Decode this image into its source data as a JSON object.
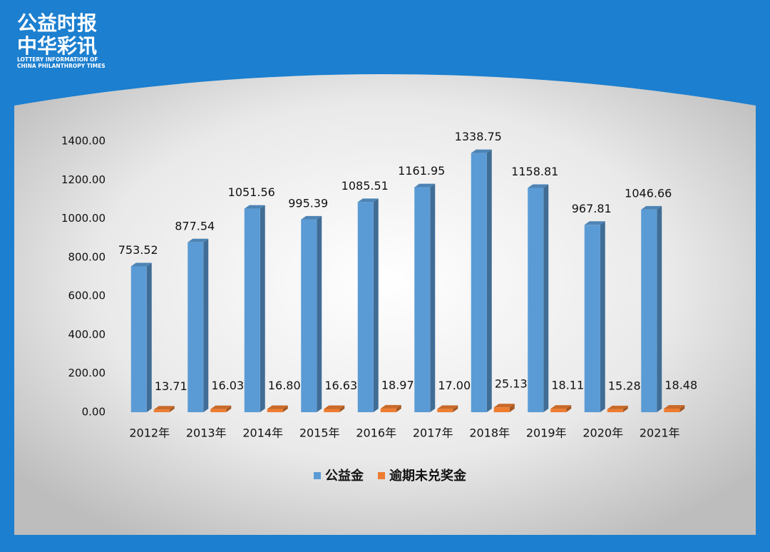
{
  "logo": {
    "title_line1": "公益时报",
    "title_line2": "中华彩讯",
    "subtitle_line1": "LOTTERY INFORMATION OF",
    "subtitle_line2": "CHINA PHILANTHROPY TIMES"
  },
  "chart_data": {
    "type": "bar3d",
    "categories": [
      "2012年",
      "2013年",
      "2014年",
      "2015年",
      "2016年",
      "2017年",
      "2018年",
      "2019年",
      "2020年",
      "2021年"
    ],
    "series": [
      {
        "name": "公益金",
        "color": "#5b9bd5",
        "values": [
          753.52,
          877.54,
          1051.56,
          995.39,
          1085.51,
          1161.95,
          1338.75,
          1158.81,
          967.81,
          1046.66
        ],
        "value_labels": [
          "753.52",
          "877.54",
          "1051.56",
          "995.39",
          "1085.51",
          "1161.95",
          "1338.75",
          "1158.81",
          "967.81",
          "1046.66"
        ]
      },
      {
        "name": "逾期未兑奖金",
        "color": "#ed7d31",
        "values": [
          13.71,
          16.03,
          16.8,
          16.63,
          18.97,
          17,
          25.13,
          18.11,
          15.28,
          18.48
        ],
        "value_labels": [
          "13.71",
          "16.03",
          "16.80",
          "16.63",
          "18.97",
          "17.00",
          "25.13",
          "18.11",
          "15.28",
          "18.48"
        ]
      }
    ],
    "ylim": [
      0,
      1400
    ],
    "yticks": [
      {
        "value": 0,
        "label": "0.00"
      },
      {
        "value": 200,
        "label": "200.00"
      },
      {
        "value": 400,
        "label": "400.00"
      },
      {
        "value": 600,
        "label": "600.00"
      },
      {
        "value": 800,
        "label": "800.00"
      },
      {
        "value": 1000,
        "label": "1000.00"
      },
      {
        "value": 1200,
        "label": "1200.00"
      },
      {
        "value": 1400,
        "label": "1400.00"
      }
    ],
    "legend": "bottom"
  }
}
